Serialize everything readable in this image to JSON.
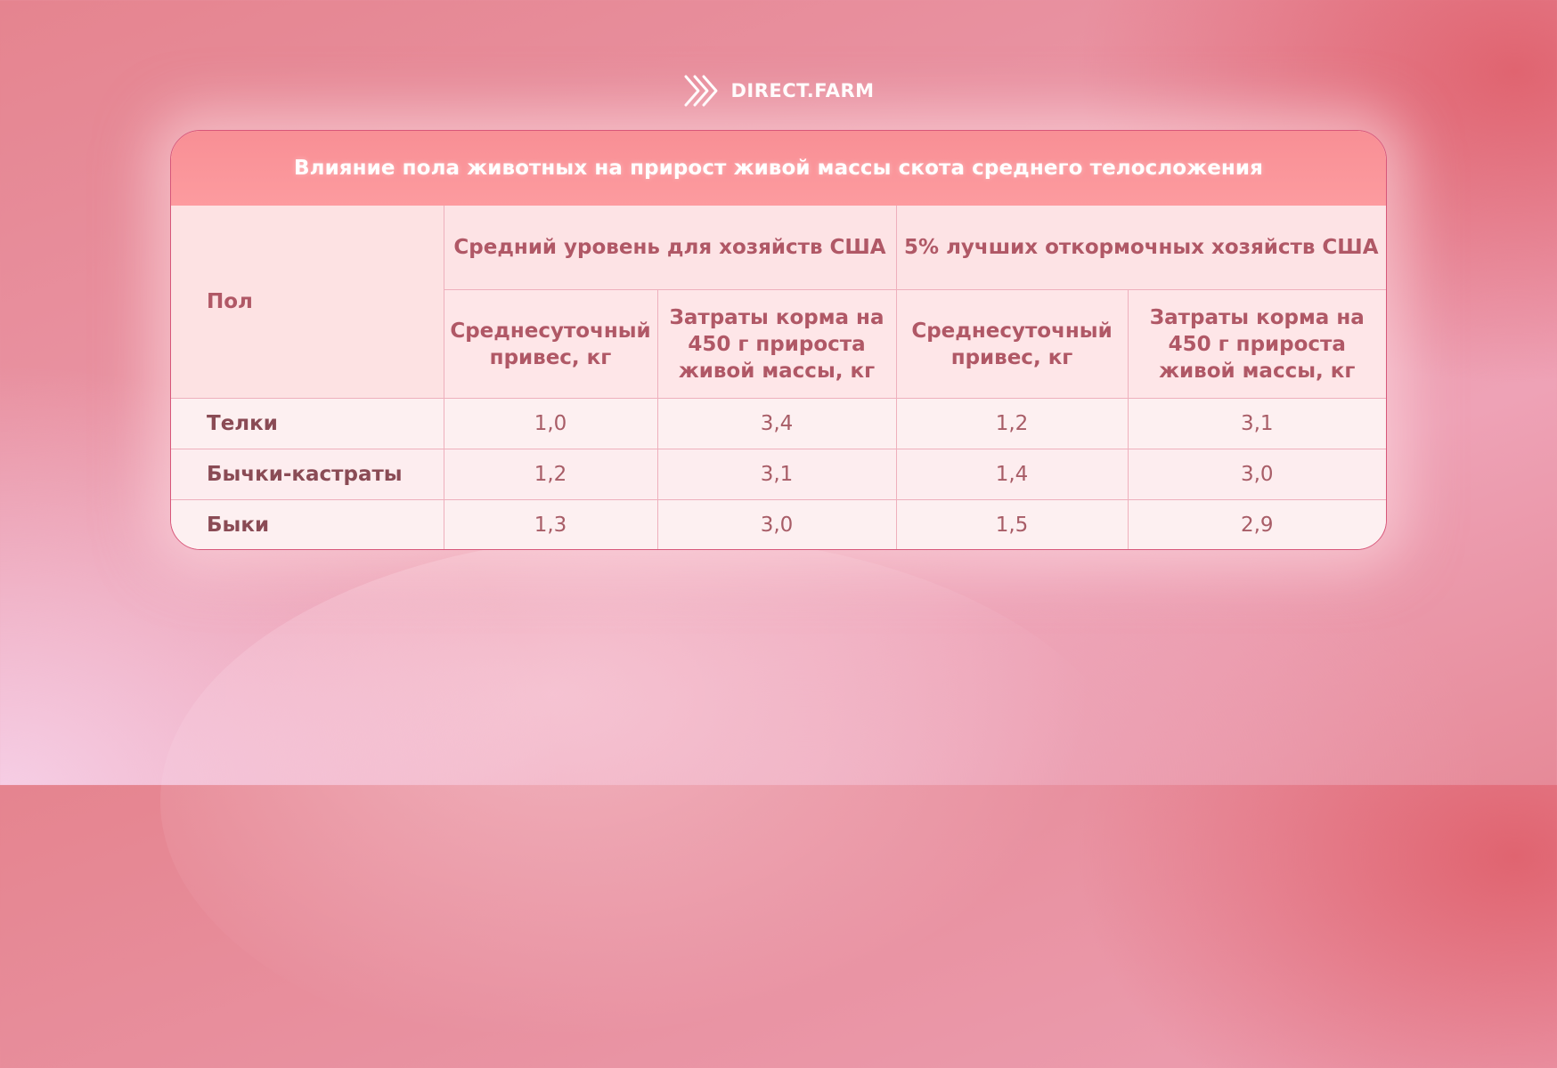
{
  "brand": {
    "name": "DIRECT.FARM",
    "logo_icon": "chevrons-icon",
    "color": "#ffffff"
  },
  "table": {
    "title": "Влияние пола животных на прирост живой массы скота среднего телосложения",
    "header": {
      "row_label": "Пол",
      "groups": [
        {
          "label": "Средний уровень для хозяйств США",
          "columns": [
            "Среднесуточный привес, кг",
            "Затраты корма на 450 г прироста живой массы, кг"
          ]
        },
        {
          "label": "5% лучших откормочных хозяйств США",
          "columns": [
            "Среднесуточный привес, кг",
            "Затраты корма на 450 г прироста живой массы, кг"
          ]
        }
      ]
    },
    "rows": [
      {
        "label": "Телки",
        "values": [
          "1,0",
          "3,4",
          "1,2",
          "3,1"
        ]
      },
      {
        "label": "Бычки-кастраты",
        "values": [
          "1,2",
          "3,1",
          "1,4",
          "3,0"
        ]
      },
      {
        "label": "Быки",
        "values": [
          "1,3",
          "3,0",
          "1,5",
          "2,9"
        ]
      }
    ],
    "colors": {
      "title_bg": "#fd9b9f",
      "border": "#eeb0bd",
      "text": "#b05866"
    }
  }
}
